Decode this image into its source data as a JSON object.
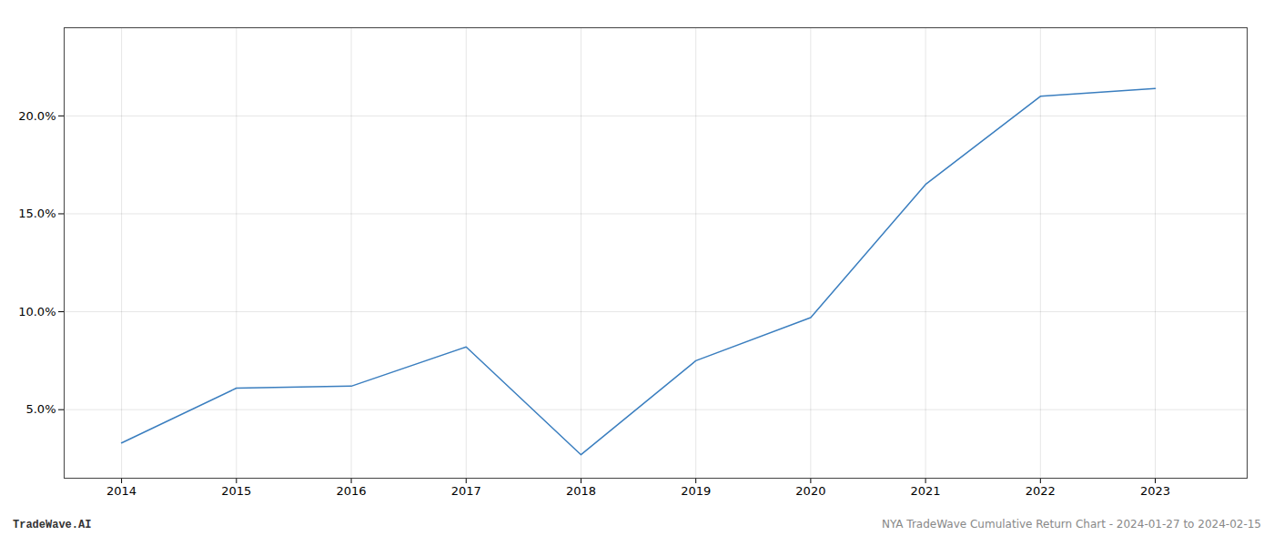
{
  "chart_data": {
    "type": "line",
    "x": [
      2014,
      2015,
      2016,
      2017,
      2018,
      2019,
      2020,
      2021,
      2022,
      2023
    ],
    "values": [
      3.3,
      6.1,
      6.2,
      8.2,
      2.7,
      7.5,
      9.7,
      16.5,
      21.0,
      21.4
    ],
    "color": "#3a7ebf",
    "xlim": [
      2013.5,
      2023.8
    ],
    "xticks": [
      2014,
      2015,
      2016,
      2017,
      2018,
      2019,
      2020,
      2021,
      2022,
      2023
    ],
    "ylim": [
      1.5,
      24.5
    ],
    "yticks": [
      {
        "value": 5.0,
        "label": "5.0%"
      },
      {
        "value": 10.0,
        "label": "10.0%"
      },
      {
        "value": 15.0,
        "label": "15.0%"
      },
      {
        "value": 20.0,
        "label": "20.0%"
      }
    ],
    "grid": true,
    "annotations": [
      "TradeWave.AI",
      "NYA TradeWave Cumulative Return Chart - 2024-01-27 to 2024-02-15"
    ]
  }
}
